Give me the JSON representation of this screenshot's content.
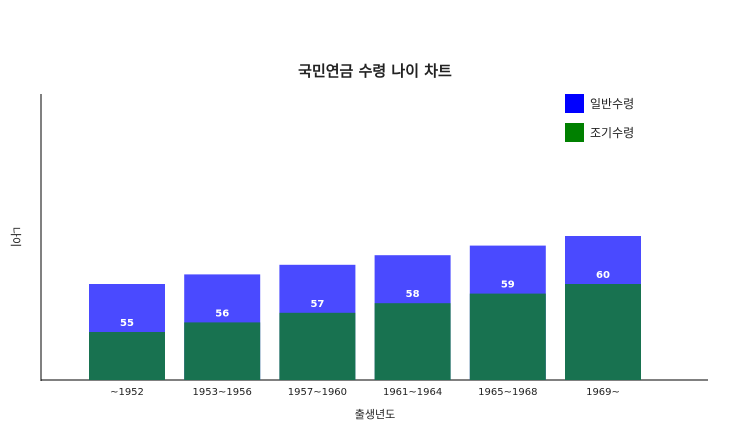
{
  "chart_data": {
    "type": "bar",
    "title": "국민연금 수령 나이 차트",
    "xlabel": "출생년도",
    "ylabel": "나이",
    "categories": [
      "~1952",
      "1953~1956",
      "1957~1960",
      "1961~1964",
      "1965~1968",
      "1969~"
    ],
    "ylim": [
      50,
      65
    ],
    "grid": false,
    "legend_position": "top-right",
    "series": [
      {
        "name": "일반수령",
        "color": "#4a4aff",
        "values": [
          60,
          61,
          62,
          63,
          64,
          65
        ]
      },
      {
        "name": "조기수령",
        "color": "#187250",
        "values": [
          55,
          56,
          57,
          58,
          59,
          60
        ]
      }
    ],
    "data_labels": [
      "55",
      "56",
      "57",
      "58",
      "59",
      "60"
    ],
    "legend": [
      {
        "label": "일반수령",
        "color": "#0000ff"
      },
      {
        "label": "조기수령",
        "color": "#008000"
      }
    ]
  }
}
